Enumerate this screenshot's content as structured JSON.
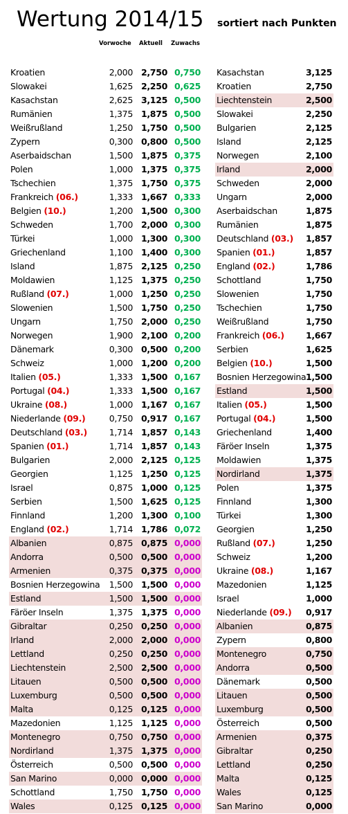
{
  "title": "Wertung 2014/15",
  "subtitle": "sortiert nach Punkten",
  "headers": {
    "prev": "Vorwoche",
    "cur": "Aktuell",
    "zuwachs": "Zuwachs"
  },
  "colors": {
    "highlight": "#f2dcdb",
    "positive": "#00b050",
    "zero": "#cc00cc",
    "rank": "#e00000"
  },
  "left": [
    {
      "name": "Kroatien",
      "rank": "",
      "prev": "2,000",
      "cur": "2,750",
      "zuw": "0,750",
      "hl": false
    },
    {
      "name": "Slowakei",
      "rank": "",
      "prev": "1,625",
      "cur": "2,250",
      "zuw": "0,625",
      "hl": false
    },
    {
      "name": "Kasachstan",
      "rank": "",
      "prev": "2,625",
      "cur": "3,125",
      "zuw": "0,500",
      "hl": false
    },
    {
      "name": "Rumänien",
      "rank": "",
      "prev": "1,375",
      "cur": "1,875",
      "zuw": "0,500",
      "hl": false
    },
    {
      "name": "Weißrußland",
      "rank": "",
      "prev": "1,250",
      "cur": "1,750",
      "zuw": "0,500",
      "hl": false
    },
    {
      "name": "Zypern",
      "rank": "",
      "prev": "0,300",
      "cur": "0,800",
      "zuw": "0,500",
      "hl": false
    },
    {
      "name": "Aserbaidschan",
      "rank": "",
      "prev": "1,500",
      "cur": "1,875",
      "zuw": "0,375",
      "hl": false
    },
    {
      "name": "Polen",
      "rank": "",
      "prev": "1,000",
      "cur": "1,375",
      "zuw": "0,375",
      "hl": false
    },
    {
      "name": "Tschechien",
      "rank": "",
      "prev": "1,375",
      "cur": "1,750",
      "zuw": "0,375",
      "hl": false
    },
    {
      "name": "Frankreich",
      "rank": "(06.)",
      "prev": "1,333",
      "cur": "1,667",
      "zuw": "0,333",
      "hl": false
    },
    {
      "name": "Belgien",
      "rank": "(10.)",
      "prev": "1,200",
      "cur": "1,500",
      "zuw": "0,300",
      "hl": false
    },
    {
      "name": "Schweden",
      "rank": "",
      "prev": "1,700",
      "cur": "2,000",
      "zuw": "0,300",
      "hl": false
    },
    {
      "name": "Türkei",
      "rank": "",
      "prev": "1,000",
      "cur": "1,300",
      "zuw": "0,300",
      "hl": false
    },
    {
      "name": "Griechenland",
      "rank": "",
      "prev": "1,100",
      "cur": "1,400",
      "zuw": "0,300",
      "hl": false
    },
    {
      "name": "Island",
      "rank": "",
      "prev": "1,875",
      "cur": "2,125",
      "zuw": "0,250",
      "hl": false
    },
    {
      "name": "Moldawien",
      "rank": "",
      "prev": "1,125",
      "cur": "1,375",
      "zuw": "0,250",
      "hl": false
    },
    {
      "name": "Rußland",
      "rank": "(07.)",
      "prev": "1,000",
      "cur": "1,250",
      "zuw": "0,250",
      "hl": false
    },
    {
      "name": "Slowenien",
      "rank": "",
      "prev": "1,500",
      "cur": "1,750",
      "zuw": "0,250",
      "hl": false
    },
    {
      "name": "Ungarn",
      "rank": "",
      "prev": "1,750",
      "cur": "2,000",
      "zuw": "0,250",
      "hl": false
    },
    {
      "name": "Norwegen",
      "rank": "",
      "prev": "1,900",
      "cur": "2,100",
      "zuw": "0,200",
      "hl": false
    },
    {
      "name": "Dänemark",
      "rank": "",
      "prev": "0,300",
      "cur": "0,500",
      "zuw": "0,200",
      "hl": false
    },
    {
      "name": "Schweiz",
      "rank": "",
      "prev": "1,000",
      "cur": "1,200",
      "zuw": "0,200",
      "hl": false
    },
    {
      "name": "Italien",
      "rank": "(05.)",
      "prev": "1,333",
      "cur": "1,500",
      "zuw": "0,167",
      "hl": false
    },
    {
      "name": "Portugal",
      "rank": "(04.)",
      "prev": "1,333",
      "cur": "1,500",
      "zuw": "0,167",
      "hl": false
    },
    {
      "name": "Ukraine",
      "rank": "(08.)",
      "prev": "1,000",
      "cur": "1,167",
      "zuw": "0,167",
      "hl": false
    },
    {
      "name": "Niederlande",
      "rank": "(09.)",
      "prev": "0,750",
      "cur": "0,917",
      "zuw": "0,167",
      "hl": false
    },
    {
      "name": "Deutschland",
      "rank": "(03.)",
      "prev": "1,714",
      "cur": "1,857",
      "zuw": "0,143",
      "hl": false
    },
    {
      "name": "Spanien",
      "rank": "(01.)",
      "prev": "1,714",
      "cur": "1,857",
      "zuw": "0,143",
      "hl": false
    },
    {
      "name": "Bulgarien",
      "rank": "",
      "prev": "2,000",
      "cur": "2,125",
      "zuw": "0,125",
      "hl": false
    },
    {
      "name": "Georgien",
      "rank": "",
      "prev": "1,125",
      "cur": "1,250",
      "zuw": "0,125",
      "hl": false
    },
    {
      "name": "Israel",
      "rank": "",
      "prev": "0,875",
      "cur": "1,000",
      "zuw": "0,125",
      "hl": false
    },
    {
      "name": "Serbien",
      "rank": "",
      "prev": "1,500",
      "cur": "1,625",
      "zuw": "0,125",
      "hl": false
    },
    {
      "name": "Finnland",
      "rank": "",
      "prev": "1,200",
      "cur": "1,300",
      "zuw": "0,100",
      "hl": false
    },
    {
      "name": "England",
      "rank": "(02.)",
      "prev": "1,714",
      "cur": "1,786",
      "zuw": "0,072",
      "hl": false
    },
    {
      "name": "Albanien",
      "rank": "",
      "prev": "0,875",
      "cur": "0,875",
      "zuw": "0,000",
      "hl": true
    },
    {
      "name": "Andorra",
      "rank": "",
      "prev": "0,500",
      "cur": "0,500",
      "zuw": "0,000",
      "hl": true
    },
    {
      "name": "Armenien",
      "rank": "",
      "prev": "0,375",
      "cur": "0,375",
      "zuw": "0,000",
      "hl": true
    },
    {
      "name": "Bosnien Herzegowina",
      "rank": "",
      "prev": "1,500",
      "cur": "1,500",
      "zuw": "0,000",
      "hl": false
    },
    {
      "name": "Estland",
      "rank": "",
      "prev": "1,500",
      "cur": "1,500",
      "zuw": "0,000",
      "hl": true
    },
    {
      "name": "Färöer Inseln",
      "rank": "",
      "prev": "1,375",
      "cur": "1,375",
      "zuw": "0,000",
      "hl": false
    },
    {
      "name": "Gibraltar",
      "rank": "",
      "prev": "0,250",
      "cur": "0,250",
      "zuw": "0,000",
      "hl": true
    },
    {
      "name": "Irland",
      "rank": "",
      "prev": "2,000",
      "cur": "2,000",
      "zuw": "0,000",
      "hl": true
    },
    {
      "name": "Lettland",
      "rank": "",
      "prev": "0,250",
      "cur": "0,250",
      "zuw": "0,000",
      "hl": true
    },
    {
      "name": "Liechtenstein",
      "rank": "",
      "prev": "2,500",
      "cur": "2,500",
      "zuw": "0,000",
      "hl": true
    },
    {
      "name": "Litauen",
      "rank": "",
      "prev": "0,500",
      "cur": "0,500",
      "zuw": "0,000",
      "hl": true
    },
    {
      "name": "Luxemburg",
      "rank": "",
      "prev": "0,500",
      "cur": "0,500",
      "zuw": "0,000",
      "hl": true
    },
    {
      "name": "Malta",
      "rank": "",
      "prev": "0,125",
      "cur": "0,125",
      "zuw": "0,000",
      "hl": true
    },
    {
      "name": "Mazedonien",
      "rank": "",
      "prev": "1,125",
      "cur": "1,125",
      "zuw": "0,000",
      "hl": false
    },
    {
      "name": "Montenegro",
      "rank": "",
      "prev": "0,750",
      "cur": "0,750",
      "zuw": "0,000",
      "hl": true
    },
    {
      "name": "Nordirland",
      "rank": "",
      "prev": "1,375",
      "cur": "1,375",
      "zuw": "0,000",
      "hl": true
    },
    {
      "name": "Österreich",
      "rank": "",
      "prev": "0,500",
      "cur": "0,500",
      "zuw": "0,000",
      "hl": false
    },
    {
      "name": "San Marino",
      "rank": "",
      "prev": "0,000",
      "cur": "0,000",
      "zuw": "0,000",
      "hl": true
    },
    {
      "name": "Schottland",
      "rank": "",
      "prev": "1,750",
      "cur": "1,750",
      "zuw": "0,000",
      "hl": false
    },
    {
      "name": "Wales",
      "rank": "",
      "prev": "0,125",
      "cur": "0,125",
      "zuw": "0,000",
      "hl": true
    }
  ],
  "right": [
    {
      "name": "Kasachstan",
      "rank": "",
      "score": "3,125",
      "hl": false
    },
    {
      "name": "Kroatien",
      "rank": "",
      "score": "2,750",
      "hl": false
    },
    {
      "name": "Liechtenstein",
      "rank": "",
      "score": "2,500",
      "hl": true
    },
    {
      "name": "Slowakei",
      "rank": "",
      "score": "2,250",
      "hl": false
    },
    {
      "name": "Bulgarien",
      "rank": "",
      "score": "2,125",
      "hl": false
    },
    {
      "name": "Island",
      "rank": "",
      "score": "2,125",
      "hl": false
    },
    {
      "name": "Norwegen",
      "rank": "",
      "score": "2,100",
      "hl": false
    },
    {
      "name": "Irland",
      "rank": "",
      "score": "2,000",
      "hl": true
    },
    {
      "name": "Schweden",
      "rank": "",
      "score": "2,000",
      "hl": false
    },
    {
      "name": "Ungarn",
      "rank": "",
      "score": "2,000",
      "hl": false
    },
    {
      "name": "Aserbaidschan",
      "rank": "",
      "score": "1,875",
      "hl": false
    },
    {
      "name": "Rumänien",
      "rank": "",
      "score": "1,875",
      "hl": false
    },
    {
      "name": "Deutschland",
      "rank": "(03.)",
      "score": "1,857",
      "hl": false
    },
    {
      "name": "Spanien",
      "rank": "(01.)",
      "score": "1,857",
      "hl": false
    },
    {
      "name": "England",
      "rank": "(02.)",
      "score": "1,786",
      "hl": false
    },
    {
      "name": "Schottland",
      "rank": "",
      "score": "1,750",
      "hl": false
    },
    {
      "name": "Slowenien",
      "rank": "",
      "score": "1,750",
      "hl": false
    },
    {
      "name": "Tschechien",
      "rank": "",
      "score": "1,750",
      "hl": false
    },
    {
      "name": "Weißrußland",
      "rank": "",
      "score": "1,750",
      "hl": false
    },
    {
      "name": "Frankreich",
      "rank": "(06.)",
      "score": "1,667",
      "hl": false
    },
    {
      "name": "Serbien",
      "rank": "",
      "score": "1,625",
      "hl": false
    },
    {
      "name": "Belgien",
      "rank": "(10.)",
      "score": "1,500",
      "hl": false
    },
    {
      "name": "Bosnien Herzegowina",
      "rank": "",
      "score": "1,500",
      "hl": false
    },
    {
      "name": "Estland",
      "rank": "",
      "score": "1,500",
      "hl": true
    },
    {
      "name": "Italien",
      "rank": "(05.)",
      "score": "1,500",
      "hl": false
    },
    {
      "name": "Portugal",
      "rank": "(04.)",
      "score": "1,500",
      "hl": false
    },
    {
      "name": "Griechenland",
      "rank": "",
      "score": "1,400",
      "hl": false
    },
    {
      "name": "Färöer Inseln",
      "rank": "",
      "score": "1,375",
      "hl": false
    },
    {
      "name": "Moldawien",
      "rank": "",
      "score": "1,375",
      "hl": false
    },
    {
      "name": "Nordirland",
      "rank": "",
      "score": "1,375",
      "hl": true
    },
    {
      "name": "Polen",
      "rank": "",
      "score": "1,375",
      "hl": false
    },
    {
      "name": "Finnland",
      "rank": "",
      "score": "1,300",
      "hl": false
    },
    {
      "name": "Türkei",
      "rank": "",
      "score": "1,300",
      "hl": false
    },
    {
      "name": "Georgien",
      "rank": "",
      "score": "1,250",
      "hl": false
    },
    {
      "name": "Rußland",
      "rank": "(07.)",
      "score": "1,250",
      "hl": false
    },
    {
      "name": "Schweiz",
      "rank": "",
      "score": "1,200",
      "hl": false
    },
    {
      "name": "Ukraine",
      "rank": "(08.)",
      "score": "1,167",
      "hl": false
    },
    {
      "name": "Mazedonien",
      "rank": "",
      "score": "1,125",
      "hl": false
    },
    {
      "name": "Israel",
      "rank": "",
      "score": "1,000",
      "hl": false
    },
    {
      "name": "Niederlande",
      "rank": "(09.)",
      "score": "0,917",
      "hl": false
    },
    {
      "name": "Albanien",
      "rank": "",
      "score": "0,875",
      "hl": true
    },
    {
      "name": "Zypern",
      "rank": "",
      "score": "0,800",
      "hl": false
    },
    {
      "name": "Montenegro",
      "rank": "",
      "score": "0,750",
      "hl": true
    },
    {
      "name": "Andorra",
      "rank": "",
      "score": "0,500",
      "hl": true
    },
    {
      "name": "Dänemark",
      "rank": "",
      "score": "0,500",
      "hl": false
    },
    {
      "name": "Litauen",
      "rank": "",
      "score": "0,500",
      "hl": true
    },
    {
      "name": "Luxemburg",
      "rank": "",
      "score": "0,500",
      "hl": true
    },
    {
      "name": "Österreich",
      "rank": "",
      "score": "0,500",
      "hl": false
    },
    {
      "name": "Armenien",
      "rank": "",
      "score": "0,375",
      "hl": true
    },
    {
      "name": "Gibraltar",
      "rank": "",
      "score": "0,250",
      "hl": true
    },
    {
      "name": "Lettland",
      "rank": "",
      "score": "0,250",
      "hl": true
    },
    {
      "name": "Malta",
      "rank": "",
      "score": "0,125",
      "hl": true
    },
    {
      "name": "Wales",
      "rank": "",
      "score": "0,125",
      "hl": true
    },
    {
      "name": "San Marino",
      "rank": "",
      "score": "0,000",
      "hl": true
    }
  ]
}
